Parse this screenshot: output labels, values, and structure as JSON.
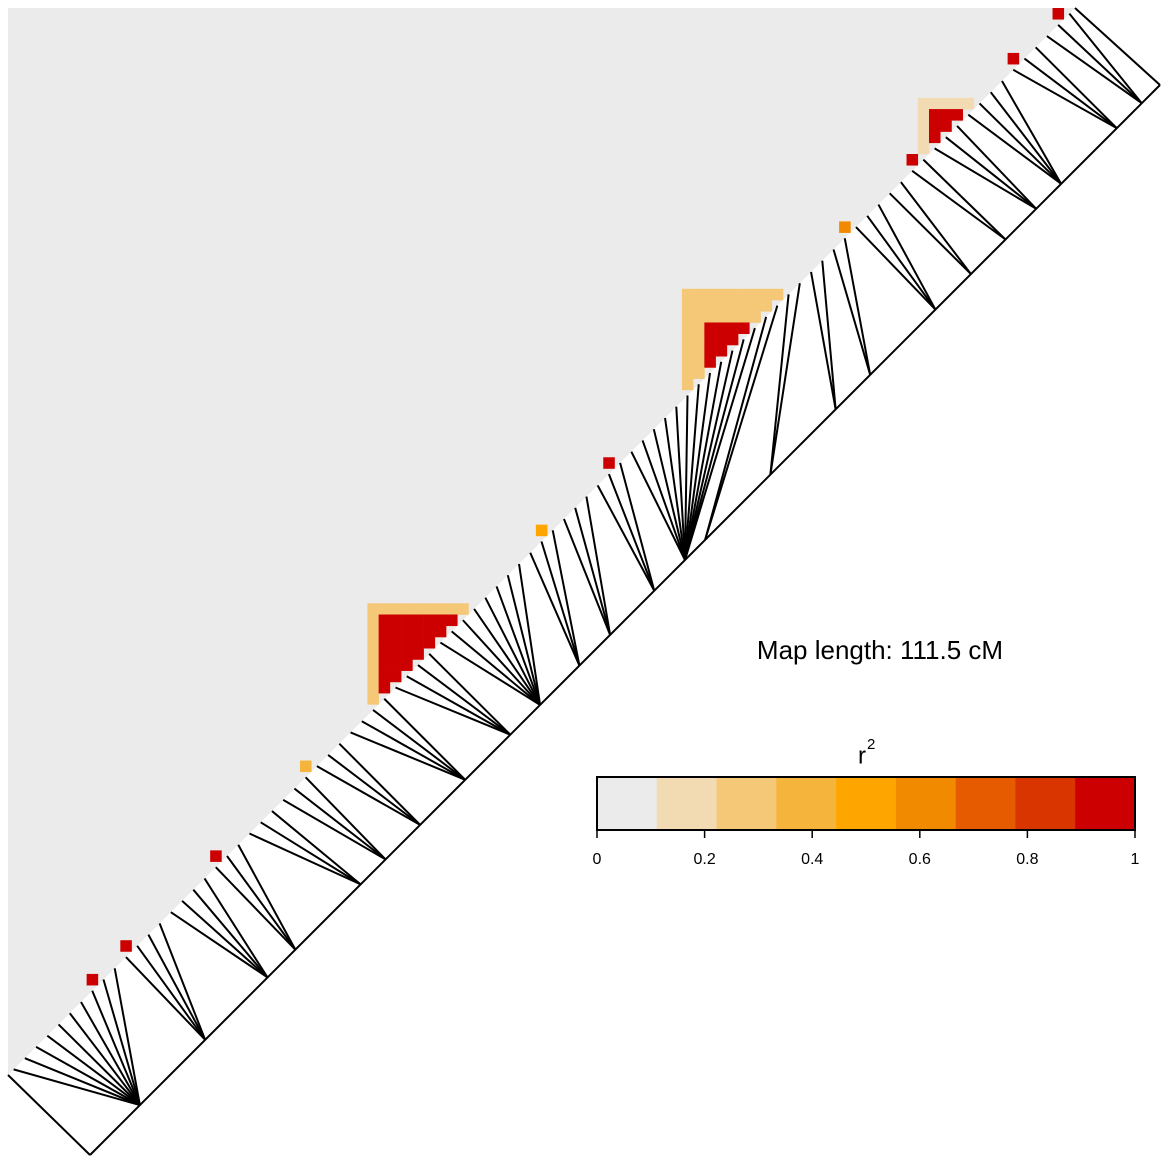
{
  "chart_data": {
    "type": "ld-heatmap",
    "map_length": {
      "value": 111.5,
      "label": "Map length: 111.5 cM"
    },
    "marker_positions": [
      5.2,
      5.2,
      5.2,
      5.2,
      5.2,
      5.2,
      5.2,
      5.2,
      5.2,
      5.2,
      12.0,
      12.0,
      12.0,
      12.0,
      18.5,
      18.5,
      18.5,
      18.5,
      21.4,
      21.4,
      21.4,
      28.2,
      28.2,
      28.2,
      30.8,
      30.8,
      30.8,
      34.4,
      34.4,
      34.4,
      39.1,
      39.1,
      39.1,
      39.1,
      43.8,
      43.8,
      43.8,
      43.8,
      46.9,
      46.9,
      46.9,
      46.9,
      46.9,
      46.9,
      46.9,
      46.9,
      51.0,
      51.0,
      51.0,
      54.2,
      54.2,
      54.2,
      58.8,
      58.8,
      58.8,
      62.0,
      62.0,
      62.0,
      62.0,
      62.0,
      62.0,
      62.0,
      62.0,
      62.0,
      62.0,
      62.0,
      62.0,
      64.1,
      64.1,
      70.9,
      70.9,
      77.7,
      77.7,
      81.3,
      81.3,
      88.1,
      88.1,
      88.1,
      91.8,
      91.8,
      95.4,
      95.4,
      98.6,
      98.6,
      98.6,
      101.2,
      101.2,
      101.2,
      101.2,
      107.0,
      107.0,
      107.0,
      109.6,
      109.6,
      109.6
    ],
    "ld_blocks": [
      {
        "markers": [
          32,
          41
        ],
        "r2": 0.25
      },
      {
        "markers": [
          33,
          40
        ],
        "r2": 0.95
      },
      {
        "markers": [
          60,
          69
        ],
        "r2": 0.3
      },
      {
        "markers": [
          62,
          66
        ],
        "r2": 0.9
      },
      {
        "markers": [
          81,
          86
        ],
        "r2": 0.2
      },
      {
        "markers": [
          82,
          85
        ],
        "r2": 0.95
      },
      {
        "markers": [
          93,
          94
        ],
        "r2": 0.95
      },
      {
        "markers": [
          89,
          90
        ],
        "r2": 0.95
      },
      {
        "markers": [
          80,
          81
        ],
        "r2": 0.95
      },
      {
        "markers": [
          18,
          19
        ],
        "r2": 0.95
      },
      {
        "markers": [
          7,
          8
        ],
        "r2": 0.95
      },
      {
        "markers": [
          10,
          11
        ],
        "r2": 0.9
      },
      {
        "markers": [
          47,
          48
        ],
        "r2": 0.5
      },
      {
        "markers": [
          53,
          54
        ],
        "r2": 0.95
      },
      {
        "markers": [
          74,
          75
        ],
        "r2": 0.6
      },
      {
        "markers": [
          26,
          27
        ],
        "r2": 0.4
      }
    ],
    "legend": {
      "title": "r",
      "title_superscript": "2",
      "clim": [
        0,
        1
      ],
      "ticks": [
        0,
        0.2,
        0.4,
        0.6,
        0.8,
        1
      ],
      "colors": [
        "#ebebeb",
        "#f2dab2",
        "#f5c878",
        "#f5b53c",
        "#ffa500",
        "#f28a00",
        "#e65a00",
        "#d93500",
        "#cc0000"
      ]
    }
  }
}
